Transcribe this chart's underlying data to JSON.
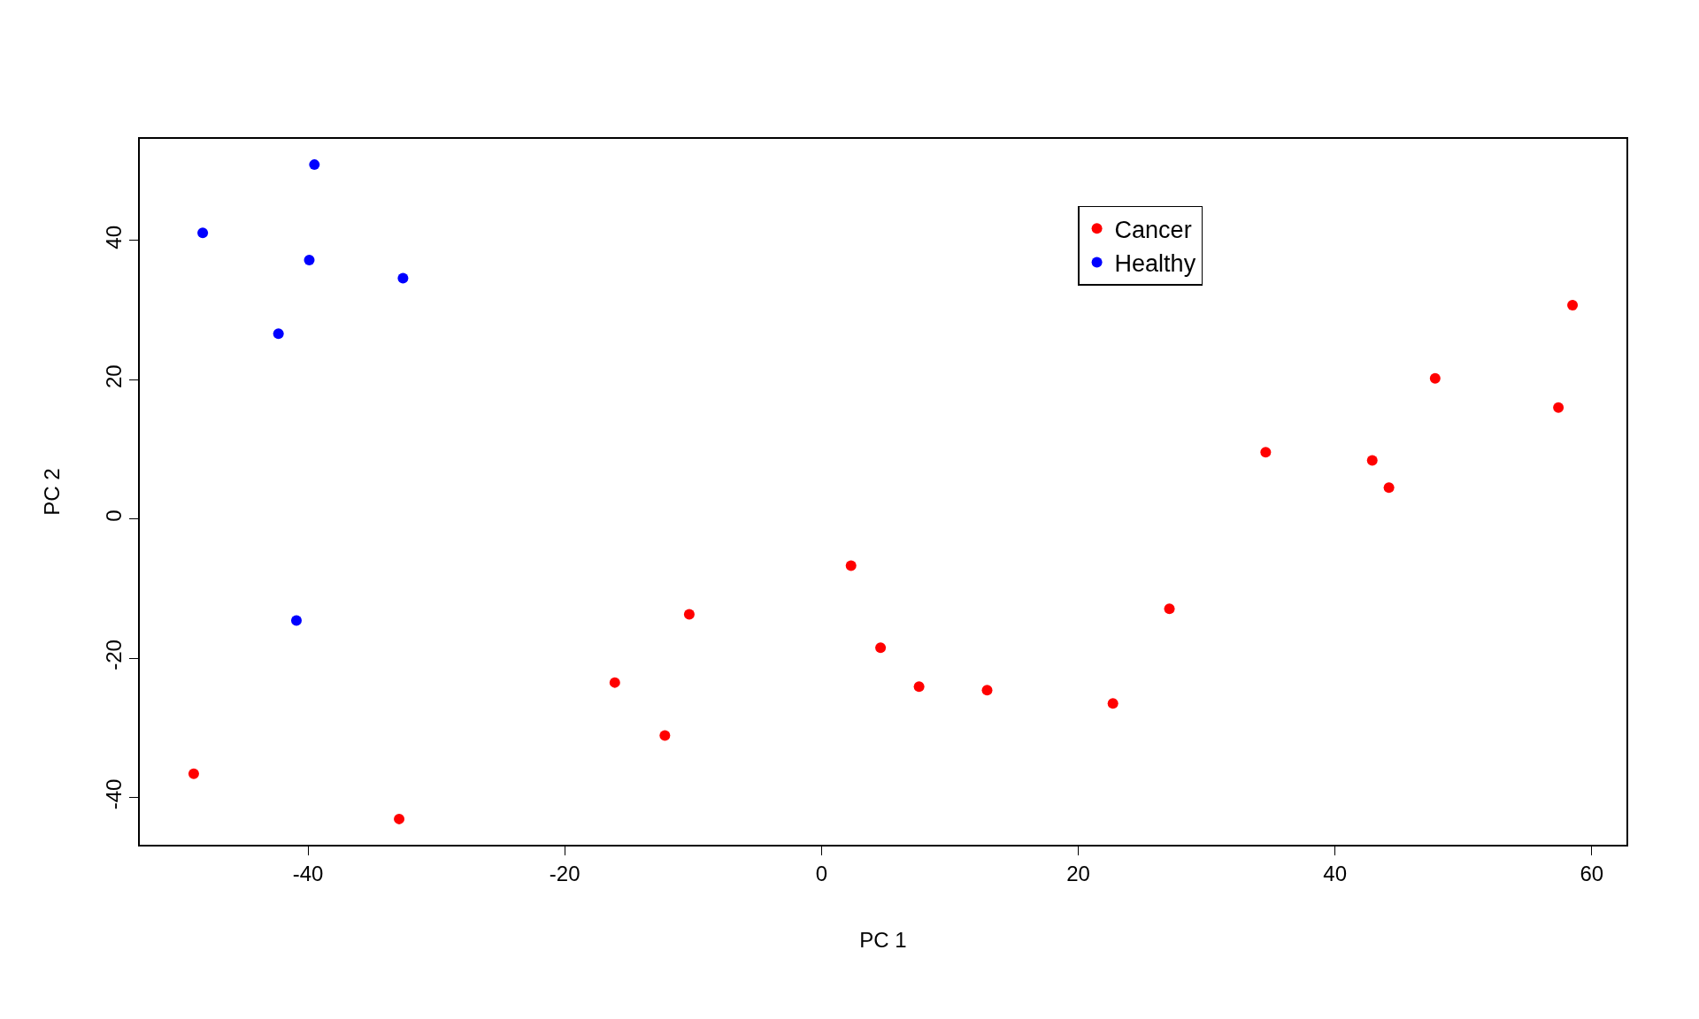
{
  "chart_data": {
    "type": "scatter",
    "xlabel": "PC 1",
    "ylabel": "PC 2",
    "xlim": [
      -53.1,
      62.7
    ],
    "ylim": [
      -46.8,
      54.6
    ],
    "xticks": [
      -40,
      -20,
      0,
      20,
      40,
      60
    ],
    "yticks": [
      -40,
      -20,
      0,
      20,
      40
    ],
    "grid": false,
    "legend": "top right",
    "marker": "circle",
    "series": [
      {
        "name": "Cancer",
        "color": "#ff0000",
        "x": [
          -48.9,
          -32.9,
          -16.1,
          -12.2,
          -10.3,
          2.3,
          4.6,
          7.6,
          12.9,
          22.7,
          27.1,
          34.6,
          42.9,
          44.2,
          47.8,
          57.4,
          58.5
        ],
        "values": [
          -36.6,
          -43.1,
          -23.5,
          -31.1,
          -13.7,
          -6.7,
          -18.5,
          -24.1,
          -24.6,
          -26.5,
          -12.9,
          9.6,
          8.4,
          4.5,
          20.2,
          16.0,
          30.7
        ]
      },
      {
        "name": "Healthy",
        "color": "#0000ff",
        "x": [
          -48.2,
          -39.5,
          -39.9,
          -32.6,
          -42.3,
          -40.9
        ],
        "values": [
          41.1,
          50.9,
          37.2,
          34.6,
          26.6,
          -14.6
        ]
      }
    ]
  }
}
